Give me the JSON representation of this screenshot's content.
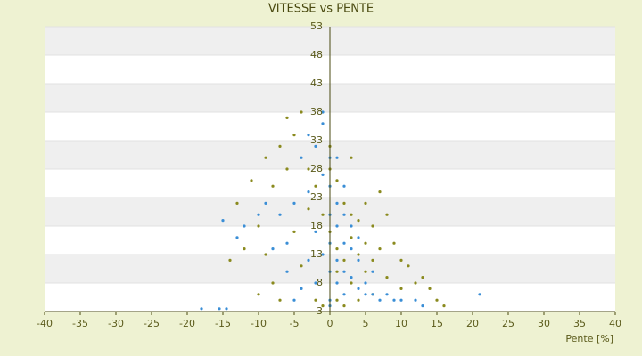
{
  "chart_data": {
    "type": "scatter",
    "title": "VITESSE vs PENTE",
    "x_label": "Pente [%]",
    "xlim": [
      -40,
      40
    ],
    "xticks": [
      -40,
      -35,
      -30,
      -25,
      -20,
      -15,
      -10,
      -5,
      0,
      5,
      10,
      15,
      20,
      25,
      30,
      35,
      40
    ],
    "ylim": [
      3,
      53
    ],
    "yticks": [
      53,
      48,
      43,
      38,
      33,
      28,
      23,
      18,
      13,
      8,
      3
    ],
    "grid": true,
    "series": [
      {
        "color": "#8a8a1e",
        "x": [
          -13,
          -14,
          -12,
          -10,
          -9,
          -8,
          -7,
          -6,
          -5,
          -4,
          -3,
          -2,
          -1,
          0,
          0,
          1,
          1,
          2,
          2,
          3,
          3,
          3,
          4,
          4,
          5,
          5,
          5,
          6,
          6,
          7,
          7,
          8,
          8,
          9,
          10,
          10,
          11,
          12,
          13,
          14,
          15,
          16,
          -11,
          -9,
          -7,
          -5,
          -4,
          -2,
          -1,
          1,
          2,
          4,
          6,
          -3,
          0,
          1,
          3,
          -8,
          -6,
          -10
        ],
        "values": [
          22,
          12,
          14,
          18,
          13,
          8,
          5,
          37,
          34,
          38,
          28,
          25,
          20,
          32,
          17,
          14,
          10,
          22,
          12,
          20,
          16,
          8,
          19,
          13,
          22,
          15,
          10,
          18,
          12,
          24,
          14,
          20,
          9,
          15,
          12,
          7,
          11,
          8,
          9,
          7,
          5,
          4,
          26,
          30,
          32,
          17,
          11,
          5,
          4,
          5,
          4,
          5,
          6,
          21,
          28,
          26,
          30,
          25,
          28,
          6
        ]
      },
      {
        "color": "#3a8ed6",
        "x": [
          -18,
          -15.5,
          -14.5,
          -13,
          -12,
          -15,
          -10,
          -8,
          -6,
          -5,
          -4,
          -3,
          -2,
          -1,
          -1,
          0,
          0,
          0,
          0,
          0,
          0,
          1,
          1,
          1,
          1,
          2,
          2,
          2,
          2,
          3,
          3,
          4,
          4,
          5,
          5,
          6,
          7,
          8,
          9,
          10,
          12,
          13,
          21,
          -2,
          -1,
          0,
          -3,
          -5,
          -7,
          -4,
          -3,
          3,
          2,
          -1,
          1,
          4,
          -6,
          -9,
          6,
          -2
        ],
        "values": [
          3.5,
          3.5,
          3.5,
          16,
          18,
          19,
          20,
          14,
          10,
          5,
          7,
          24,
          32,
          36,
          38,
          30,
          25,
          20,
          15,
          10,
          5,
          22,
          18,
          12,
          8,
          20,
          15,
          10,
          6,
          14,
          9,
          12,
          7,
          8,
          6,
          6,
          5,
          6,
          5,
          5,
          5,
          4,
          6,
          17,
          13,
          4,
          12,
          22,
          20,
          30,
          34,
          18,
          25,
          27,
          30,
          16,
          15,
          22,
          10,
          8
        ]
      }
    ]
  }
}
